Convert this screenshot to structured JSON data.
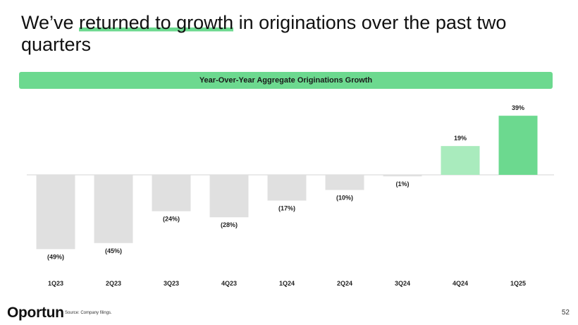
{
  "headline": {
    "before": "We’ve ",
    "highlight": "returned to growth",
    "after": " in originations over the past two quarters"
  },
  "chart_data": {
    "type": "bar",
    "title": "Year-Over-Year Aggregate Originations Growth",
    "categories": [
      "1Q23",
      "2Q23",
      "3Q23",
      "4Q23",
      "1Q24",
      "2Q24",
      "3Q24",
      "4Q24",
      "1Q25"
    ],
    "values": [
      -49,
      -45,
      -24,
      -28,
      -17,
      -10,
      -1,
      19,
      39
    ],
    "labels": [
      "(49%)",
      "(45%)",
      "(24%)",
      "(28%)",
      "(17%)",
      "(10%)",
      "(1%)",
      "19%",
      "39%"
    ],
    "colors": {
      "negative": "#e0e0e0",
      "positive_light": "#a9ebbd",
      "positive": "#6cd98f",
      "baseline": "#d6d6d6"
    },
    "grid": false
  },
  "footer": {
    "logo": "Oportun",
    "source": "Source: Company filings.",
    "page": "52"
  }
}
